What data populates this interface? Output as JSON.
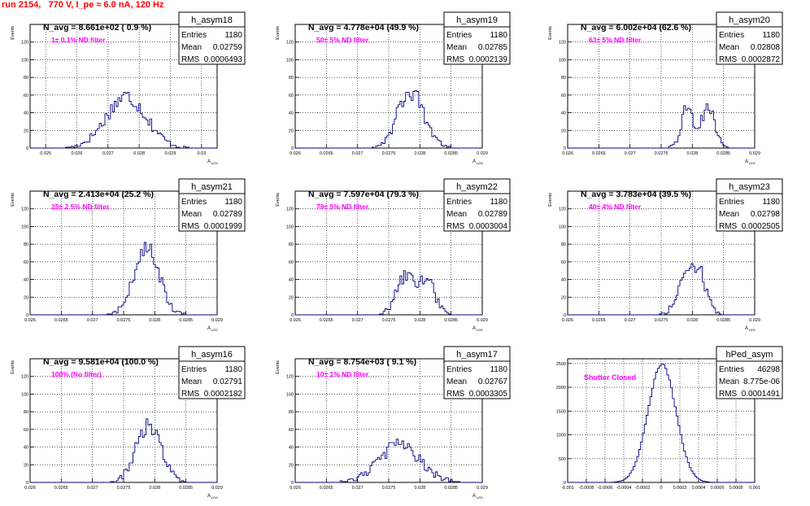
{
  "run_title": "run 2154,   770 V, I_pe ≈ 6.0 nA, 120 Hz",
  "colors": {
    "hist": "#000080",
    "note": "#ff00ff",
    "title": "#ff0000",
    "grid": "#000000"
  },
  "chart_data": [
    {
      "type": "histogram",
      "name": "h_asym18",
      "stats": {
        "entries_label": "Entries",
        "entries": "1180",
        "mean_label": "Mean",
        "mean": "0.02759",
        "rms_label": "RMS",
        "rms": "0.0006493"
      },
      "navg": "N_avg = 8.661e+02 ( 0.9 %)",
      "note": "1± 0.1% ND filter",
      "xlabel": "A",
      "xlabel_sub": "LED",
      "ylabel": "Events",
      "xlim": [
        0.0245,
        0.0305
      ],
      "ylim": [
        0,
        140
      ],
      "xticks": [
        0.025,
        0.026,
        0.027,
        0.028,
        0.029,
        0.03
      ],
      "xtick_labels": [
        "0.025",
        "0.026",
        "0.027",
        "0.028",
        "0.029",
        "0.03"
      ],
      "yticks": [
        0,
        20,
        40,
        60,
        80,
        100,
        120
      ],
      "ytick_labels": [
        "0",
        "20",
        "40",
        "60",
        "80",
        "100",
        "120"
      ],
      "peaks": [
        [
          0.02759,
          0.00065,
          58
        ]
      ]
    },
    {
      "type": "histogram",
      "name": "h_asym19",
      "stats": {
        "entries_label": "Entries",
        "entries": "1180",
        "mean_label": "Mean",
        "mean": "0.02785",
        "rms_label": "RMS",
        "rms": "0.0002139"
      },
      "navg": "N_avg = 4.778e+04 (49.9 %)",
      "note": "50± 5% ND filter",
      "xlabel": "A",
      "xlabel_sub": "LED",
      "ylabel": "Events",
      "xlim": [
        0.026,
        0.029
      ],
      "ylim": [
        0,
        140
      ],
      "xticks": [
        0.026,
        0.0265,
        0.027,
        0.0275,
        0.028,
        0.0285,
        0.029
      ],
      "xtick_labels": [
        "0.026",
        "0.0265",
        "0.027",
        "0.0275",
        "0.028",
        "0.0285",
        "0.029"
      ],
      "yticks": [
        0,
        20,
        40,
        60,
        80,
        100,
        120
      ],
      "ytick_labels": [
        "0",
        "20",
        "40",
        "60",
        "80",
        "100",
        "120"
      ],
      "peaks": [
        [
          0.02785,
          0.00021,
          64
        ]
      ]
    },
    {
      "type": "histogram",
      "name": "h_asym20",
      "stats": {
        "entries_label": "Entries",
        "entries": "1180",
        "mean_label": "Mean",
        "mean": "0.02808",
        "rms_label": "RMS",
        "rms": "0.0002872"
      },
      "navg": "N_avg = 6.002e+04 (62.6 %)",
      "note": "63± 5% ND filter",
      "xlabel": "A",
      "xlabel_sub": "LED",
      "ylabel": "Events",
      "xlim": [
        0.026,
        0.029
      ],
      "ylim": [
        0,
        140
      ],
      "xticks": [
        0.026,
        0.0265,
        0.027,
        0.0275,
        0.028,
        0.0285,
        0.029
      ],
      "xtick_labels": [
        "0.026",
        "0.0265",
        "0.027",
        "0.0275",
        "0.028",
        "0.0285",
        "0.029"
      ],
      "yticks": [
        0,
        20,
        40,
        60,
        80,
        100,
        120
      ],
      "ytick_labels": [
        "0",
        "20",
        "40",
        "60",
        "80",
        "100",
        "120"
      ],
      "peaks": [
        [
          0.02792,
          0.0001,
          44
        ],
        [
          0.02825,
          0.00011,
          47
        ]
      ]
    },
    {
      "type": "histogram",
      "name": "h_asym21",
      "stats": {
        "entries_label": "Entries",
        "entries": "1180",
        "mean_label": "Mean",
        "mean": "0.02789",
        "rms_label": "RMS",
        "rms": "0.0001999"
      },
      "navg": "N_avg = 2.413e+04 (25.2 %)",
      "note": "25± 2.5% ND filter",
      "xlabel": "A",
      "xlabel_sub": "LED",
      "ylabel": "Events",
      "xlim": [
        0.026,
        0.029
      ],
      "ylim": [
        0,
        140
      ],
      "xticks": [
        0.026,
        0.0265,
        0.027,
        0.0275,
        0.028,
        0.0285,
        0.029
      ],
      "xtick_labels": [
        "0.026",
        "0.0265",
        "0.027",
        "0.0275",
        "0.028",
        "0.0285",
        "0.029"
      ],
      "yticks": [
        0,
        20,
        40,
        60,
        80,
        100,
        120
      ],
      "ytick_labels": [
        "0",
        "20",
        "40",
        "60",
        "80",
        "100",
        "120"
      ],
      "peaks": [
        [
          0.02787,
          0.0002,
          74
        ]
      ]
    },
    {
      "type": "histogram",
      "name": "h_asym22",
      "stats": {
        "entries_label": "Entries",
        "entries": "1180",
        "mean_label": "Mean",
        "mean": "0.02789",
        "rms_label": "RMS",
        "rms": "0.0003004"
      },
      "navg": "N_avg = 7.597e+04 (79.3 %)",
      "note": "79± 5% ND filter",
      "xlabel": "A",
      "xlabel_sub": "LED",
      "ylabel": "Events",
      "xlim": [
        0.026,
        0.029
      ],
      "ylim": [
        0,
        140
      ],
      "xticks": [
        0.026,
        0.0265,
        0.027,
        0.0275,
        0.028,
        0.0285,
        0.029
      ],
      "xtick_labels": [
        "0.026",
        "0.0265",
        "0.027",
        "0.0275",
        "0.028",
        "0.0285",
        "0.029"
      ],
      "yticks": [
        0,
        20,
        40,
        60,
        80,
        100,
        120
      ],
      "ytick_labels": [
        "0",
        "20",
        "40",
        "60",
        "80",
        "100",
        "120"
      ],
      "peaks": [
        [
          0.02775,
          0.00014,
          40
        ],
        [
          0.0281,
          0.00014,
          40
        ]
      ]
    },
    {
      "type": "histogram",
      "name": "h_asym23",
      "stats": {
        "entries_label": "Entries",
        "entries": "1180",
        "mean_label": "Mean",
        "mean": "0.02798",
        "rms_label": "RMS",
        "rms": "0.0002505"
      },
      "navg": "N_avg = 3.783e+04 (39.5 %)",
      "note": "40± 4% ND filter",
      "xlabel": "A",
      "xlabel_sub": "LED",
      "ylabel": "Events",
      "xlim": [
        0.026,
        0.029
      ],
      "ylim": [
        0,
        140
      ],
      "xticks": [
        0.026,
        0.0265,
        0.027,
        0.0275,
        0.028,
        0.0285,
        0.029
      ],
      "xtick_labels": [
        "0.026",
        "0.0265",
        "0.027",
        "0.0275",
        "0.028",
        "0.0285",
        "0.029"
      ],
      "yticks": [
        0,
        20,
        40,
        60,
        80,
        100,
        120
      ],
      "ytick_labels": [
        "0",
        "20",
        "40",
        "60",
        "80",
        "100",
        "120"
      ],
      "peaks": [
        [
          0.0279,
          0.00014,
          44
        ],
        [
          0.02812,
          0.00012,
          38
        ]
      ]
    },
    {
      "type": "histogram",
      "name": "h_asym16",
      "stats": {
        "entries_label": "Entries",
        "entries": "1180",
        "mean_label": "Mean",
        "mean": "0.02791",
        "rms_label": "RMS",
        "rms": "0.0002182"
      },
      "navg": "N_avg = 9.581e+04 (100.0 %)",
      "note": "100% (No filter)",
      "xlabel": "A",
      "xlabel_sub": "LED",
      "ylabel": "Events",
      "xlim": [
        0.026,
        0.029
      ],
      "ylim": [
        0,
        140
      ],
      "xticks": [
        0.026,
        0.0265,
        0.027,
        0.0275,
        0.028,
        0.0285,
        0.029
      ],
      "xtick_labels": [
        "0.026",
        "0.0265",
        "0.027",
        "0.0275",
        "0.028",
        "0.0285",
        "0.029"
      ],
      "yticks": [
        0,
        20,
        40,
        60,
        80,
        100,
        120
      ],
      "ytick_labels": [
        "0",
        "20",
        "40",
        "60",
        "80",
        "100",
        "120"
      ],
      "peaks": [
        [
          0.0279,
          0.0002,
          64
        ]
      ]
    },
    {
      "type": "histogram",
      "name": "h_asym17",
      "stats": {
        "entries_label": "Entries",
        "entries": "1180",
        "mean_label": "Mean",
        "mean": "0.02767",
        "rms_label": "RMS",
        "rms": "0.0003305"
      },
      "navg": "N_avg = 8.754e+03 ( 9.1 %)",
      "note": "10± 1% ND filter",
      "xlabel": "A",
      "xlabel_sub": "LED",
      "ylabel": "Events",
      "xlim": [
        0.026,
        0.029
      ],
      "ylim": [
        0,
        140
      ],
      "xticks": [
        0.026,
        0.0265,
        0.027,
        0.0275,
        0.028,
        0.0285,
        0.029
      ],
      "xtick_labels": [
        "0.026",
        "0.0265",
        "0.027",
        "0.0275",
        "0.028",
        "0.0285",
        "0.029"
      ],
      "yticks": [
        0,
        20,
        40,
        60,
        80,
        100,
        120
      ],
      "ytick_labels": [
        "0",
        "20",
        "40",
        "60",
        "80",
        "100",
        "120"
      ],
      "peaks": [
        [
          0.02767,
          0.00033,
          42
        ]
      ]
    },
    {
      "type": "histogram",
      "name": "hPed_asym",
      "stats": {
        "entries_label": "Entries",
        "entries": "46298",
        "mean_label": "Mean",
        "mean": "8.775e-06",
        "rms_label": "RMS",
        "rms": "0.0001491"
      },
      "navg": "",
      "note": "Shutter Closed",
      "xlabel": "",
      "xlabel_sub": "",
      "ylabel": "",
      "xlim": [
        -0.001,
        0.001
      ],
      "ylim": [
        0,
        2600
      ],
      "xticks": [
        -0.001,
        -0.0008,
        -0.0006,
        -0.0004,
        -0.0002,
        0,
        0.0002,
        0.0004,
        0.0006,
        0.0008,
        0.001
      ],
      "xtick_labels": [
        "-0.001",
        "-0.0008",
        "-0.0006",
        "-0.0004",
        "-0.0002",
        "0",
        "0.0002",
        "0.0004",
        "0.0006",
        "0.0008",
        "0.001"
      ],
      "yticks": [
        0,
        500,
        1000,
        1500,
        2000,
        2500
      ],
      "ytick_labels": [
        "0",
        "500",
        "1000",
        "1500",
        "2000",
        "2500"
      ],
      "peaks": [
        [
          8.8e-06,
          0.000149,
          2480
        ]
      ]
    }
  ]
}
